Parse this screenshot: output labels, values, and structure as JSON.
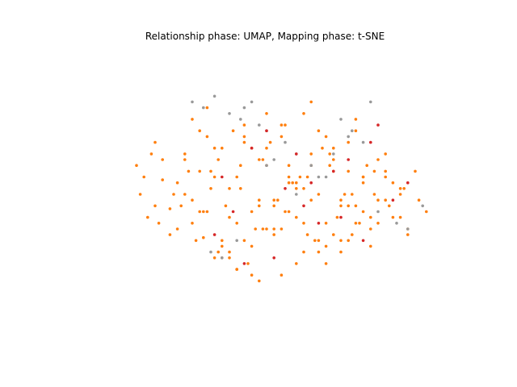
{
  "chart_data": {
    "type": "scatter",
    "title": "Relationship phase: UMAP, Mapping phase: t-SNE",
    "xlabel": "",
    "ylabel": "",
    "axes_visible": false,
    "grid": false,
    "legend": "none",
    "xlim": [
      0,
      100
    ],
    "ylim": [
      0,
      100
    ],
    "colors": {
      "orange": "#ff7f0e",
      "gray": "#999999",
      "red": "#d62728"
    },
    "series": [
      {
        "color": "orange",
        "x": [
          15,
          16,
          18,
          20,
          22,
          24,
          26,
          28,
          30,
          32,
          33,
          35,
          36,
          38,
          40,
          42,
          44,
          46,
          48,
          50,
          52,
          54,
          56,
          58,
          60,
          62,
          64,
          66,
          68,
          70,
          72,
          74,
          76,
          78,
          80,
          82,
          84,
          86,
          88,
          90,
          20,
          22,
          26,
          30,
          34,
          38,
          42,
          46,
          50,
          54,
          58,
          62,
          66,
          70,
          74,
          78,
          82,
          86,
          24,
          28,
          32,
          36,
          40,
          44,
          48,
          52,
          56,
          60,
          64,
          68,
          72,
          76,
          80,
          84,
          30,
          34,
          38,
          42,
          46,
          50,
          54,
          58,
          62,
          66,
          70,
          74,
          78,
          82,
          86,
          88,
          28,
          32,
          36,
          40,
          44,
          48,
          52,
          56,
          60,
          64,
          68,
          72,
          76,
          80,
          35,
          39,
          43,
          47,
          51,
          55,
          59,
          63,
          67,
          71,
          75,
          79,
          83,
          37,
          41,
          45,
          49,
          53,
          57,
          61,
          65,
          69,
          73,
          77,
          33,
          38,
          44,
          50,
          56,
          62,
          68,
          74,
          82,
          87,
          91,
          93,
          17,
          19,
          21,
          25,
          27,
          29,
          31,
          34,
          37,
          40,
          43,
          46,
          49,
          52,
          55,
          58,
          61,
          64,
          67,
          70,
          73,
          76,
          79,
          42,
          48,
          54,
          60,
          66,
          72
        ],
        "y": [
          60,
          50,
          42,
          68,
          55,
          45,
          38,
          62,
          48,
          72,
          35,
          58,
          28,
          66,
          52,
          40,
          74,
          32,
          46,
          60,
          36,
          70,
          44,
          54,
          30,
          64,
          50,
          40,
          58,
          34,
          68,
          46,
          56,
          38,
          62,
          48,
          42,
          52,
          36,
          58,
          46,
          62,
          54,
          40,
          70,
          34,
          56,
          44,
          66,
          38,
          52,
          60,
          32,
          48,
          72,
          42,
          58,
          50,
          36,
          64,
          44,
          56,
          30,
          68,
          48,
          38,
          60,
          52,
          34,
          66,
          46,
          56,
          40,
          54,
          76,
          80,
          28,
          24,
          22,
          78,
          74,
          26,
          82,
          70,
          30,
          76,
          32,
          64,
          42,
          38,
          50,
          58,
          66,
          42,
          34,
          62,
          46,
          54,
          40,
          72,
          36,
          58,
          44,
          48,
          52,
          46,
          60,
          38,
          68,
          44,
          56,
          34,
          64,
          50,
          40,
          58,
          46,
          30,
          72,
          26,
          62,
          48,
          54,
          36,
          66,
          42,
          50,
          60,
          44,
          32,
          70,
          38,
          56,
          48,
          62,
          40,
          56,
          52,
          48,
          44,
          56,
          64,
          40,
          50,
          46,
          58,
          34,
          44,
          62,
          28,
          52,
          66,
          38,
          48,
          74,
          42,
          56,
          30,
          60,
          46,
          36,
          54,
          50,
          24,
          20,
          22,
          78,
          26,
          34
        ]
      },
      {
        "color": "gray",
        "x": [
          30,
          33,
          36,
          40,
          43,
          44,
          46,
          48,
          50,
          55,
          58,
          62,
          66,
          70,
          73,
          76,
          80,
          85,
          88,
          92,
          35,
          38,
          42,
          50,
          52,
          58,
          64,
          68,
          72,
          78
        ],
        "y": [
          82,
          80,
          84,
          78,
          76,
          80,
          82,
          74,
          72,
          68,
          64,
          60,
          56,
          76,
          72,
          68,
          44,
          40,
          38,
          46,
          30,
          28,
          34,
          60,
          62,
          50,
          56,
          64,
          70,
          82
        ]
      },
      {
        "color": "red",
        "x": [
          38,
          41,
          46,
          50,
          55,
          60,
          64,
          68,
          72,
          76,
          80,
          84,
          36,
          52,
          58,
          62,
          70,
          78,
          88,
          44
        ],
        "y": [
          56,
          44,
          66,
          72,
          52,
          46,
          40,
          58,
          62,
          34,
          74,
          48,
          36,
          28,
          64,
          54,
          42,
          68,
          54,
          26
        ]
      }
    ]
  }
}
